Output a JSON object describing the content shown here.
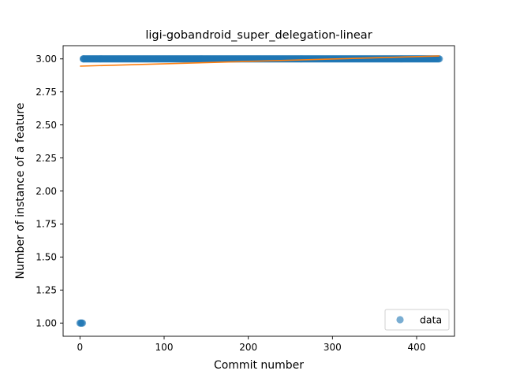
{
  "chart_data": {
    "type": "scatter",
    "title": "ligi-gobandroid_super_delegation-linear",
    "xlabel": "Commit number",
    "ylabel": "Number of instance of a feature",
    "xlim": [
      -20,
      445
    ],
    "ylim": [
      0.9,
      3.1
    ],
    "xticks": [
      0,
      100,
      200,
      300,
      400
    ],
    "yticks": [
      1.0,
      1.25,
      1.5,
      1.75,
      2.0,
      2.25,
      2.5,
      2.75,
      3.0
    ],
    "xtick_labels": [
      "0",
      "100",
      "200",
      "300",
      "400"
    ],
    "ytick_labels": [
      "1.00",
      "1.25",
      "1.50",
      "1.75",
      "2.00",
      "2.25",
      "2.50",
      "2.75",
      "3.00"
    ],
    "series": [
      {
        "name": "data",
        "kind": "scatter",
        "color": "#1f77b4",
        "alpha": 0.6,
        "points": [
          [
            0,
            1.0
          ],
          [
            1,
            1.0
          ],
          [
            2,
            1.0
          ],
          [
            3,
            1.0
          ],
          [
            4,
            3.0
          ]
        ],
        "constant_run": {
          "x_start": 4,
          "x_end": 427,
          "y": 3.0
        }
      },
      {
        "kind": "line",
        "color": "#ff7f0e",
        "x": [
          0,
          427
        ],
        "y": [
          2.945,
          3.022
        ]
      }
    ],
    "legend": {
      "location": "lower right",
      "entries": [
        "data"
      ]
    },
    "grid": false
  }
}
